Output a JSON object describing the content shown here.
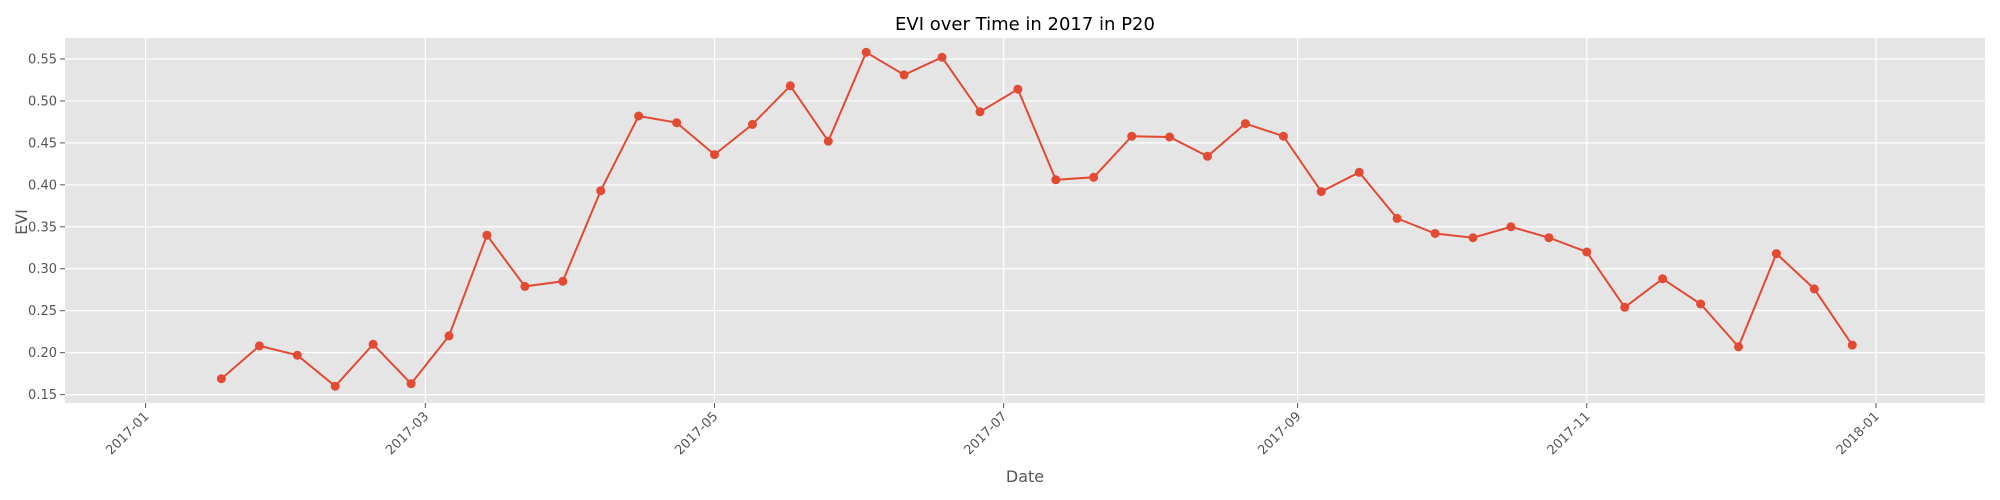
{
  "chart_data": {
    "type": "line",
    "title": "EVI over Time in 2017 in P20",
    "xlabel": "Date",
    "ylabel": "EVI",
    "grid": true,
    "line_color": "#E24A33",
    "plot_background": "#E5E5E5",
    "x_ticks": [
      "2017-01-01",
      "2017-03-01",
      "2017-05-01",
      "2017-07-01",
      "2017-09-01",
      "2017-11-01",
      "2018-01-01"
    ],
    "x_tick_labels": [
      "2017-01",
      "2017-03",
      "2017-05",
      "2017-07",
      "2017-09",
      "2017-11",
      "2018-01"
    ],
    "xlim": [
      "2016-12-15",
      "2018-01-24"
    ],
    "y_ticks": [
      0.15,
      0.2,
      0.25,
      0.3,
      0.35,
      0.4,
      0.45,
      0.5,
      0.55
    ],
    "y_tick_labels": [
      "0.15",
      "0.20",
      "0.25",
      "0.30",
      "0.35",
      "0.40",
      "0.45",
      "0.50",
      "0.55"
    ],
    "ylim": [
      0.14,
      0.575
    ],
    "series": [
      {
        "x": [
          "2017-01-17",
          "2017-01-25",
          "2017-02-02",
          "2017-02-10",
          "2017-02-18",
          "2017-02-26",
          "2017-03-06",
          "2017-03-14",
          "2017-03-22",
          "2017-03-30",
          "2017-04-07",
          "2017-04-15",
          "2017-04-23",
          "2017-05-01",
          "2017-05-09",
          "2017-05-17",
          "2017-05-25",
          "2017-06-02",
          "2017-06-10",
          "2017-06-18",
          "2017-06-26",
          "2017-07-04",
          "2017-07-12",
          "2017-07-20",
          "2017-07-28",
          "2017-08-05",
          "2017-08-13",
          "2017-08-21",
          "2017-08-29",
          "2017-09-06",
          "2017-09-14",
          "2017-09-22",
          "2017-09-30",
          "2017-10-08",
          "2017-10-16",
          "2017-10-24",
          "2017-11-01",
          "2017-11-09",
          "2017-11-17",
          "2017-11-25",
          "2017-12-03",
          "2017-12-11",
          "2017-12-19",
          "2017-12-27"
        ],
        "values": [
          0.169,
          0.208,
          0.197,
          0.16,
          0.21,
          0.163,
          0.22,
          0.34,
          0.279,
          0.285,
          0.393,
          0.482,
          0.474,
          0.436,
          0.472,
          0.518,
          0.452,
          0.558,
          0.531,
          0.552,
          0.487,
          0.514,
          0.406,
          0.409,
          0.458,
          0.457,
          0.434,
          0.473,
          0.458,
          0.392,
          0.415,
          0.36,
          0.342,
          0.337,
          0.35,
          0.337,
          0.32,
          0.254,
          0.288,
          0.258,
          0.207,
          0.318,
          0.276,
          0.209
        ]
      }
    ]
  }
}
